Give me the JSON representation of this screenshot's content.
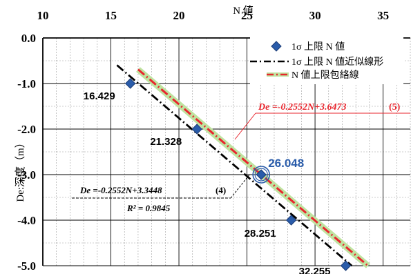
{
  "chart_data": {
    "type": "scatter",
    "xlabel": "N 値",
    "ylabel": "De:深度（m）",
    "xlim": [
      10,
      37
    ],
    "ylim": [
      -5.0,
      0.0
    ],
    "x_ticks": [
      "10",
      "15",
      "20",
      "25",
      "30",
      "35"
    ],
    "y_ticks": [
      "0.0",
      "-1.0",
      "-2.0",
      "-3.0",
      "-4.0",
      "-5.0"
    ],
    "x_axis_position": "top",
    "grid": true,
    "legend_position": "top-right",
    "series": [
      {
        "name": "1σ 上限 N 値",
        "kind": "points",
        "marker": "diamond",
        "color": "#2a5caa",
        "points": [
          {
            "x": 16.429,
            "y": -1.0,
            "label": "16.429"
          },
          {
            "x": 21.328,
            "y": -2.0,
            "label": "21.328"
          },
          {
            "x": 26.048,
            "y": -3.0,
            "label": "26.048",
            "highlight": true
          },
          {
            "x": 28.251,
            "y": -4.0,
            "label": "28.251"
          },
          {
            "x": 32.255,
            "y": -5.0,
            "label": "32.255"
          }
        ]
      },
      {
        "name": "1σ 上限 N 値近似線形",
        "kind": "line",
        "style": "dash-dot",
        "color": "#000000",
        "slope": -0.2552,
        "intercept": 3.3448,
        "x_range": [
          15.45,
          32.7
        ]
      },
      {
        "name": "N 値上限包絡線",
        "kind": "line",
        "style": "dash-dot",
        "color": "#e8262e",
        "slope": -0.2552,
        "intercept": 3.6473,
        "x_range": [
          17.0,
          33.9
        ]
      }
    ],
    "annotations": {
      "red_equation": "De =-0.2552N+3.6473",
      "red_equation_num": "(5)",
      "black_equation": "De =-0.2552N+3.3448",
      "black_equation_num": "(4)",
      "r_squared": "R² = 0.9845"
    },
    "colors": {
      "red": "#e8262e",
      "blue": "#2a5caa",
      "green": "#bfe3a0",
      "black": "#000000"
    }
  }
}
